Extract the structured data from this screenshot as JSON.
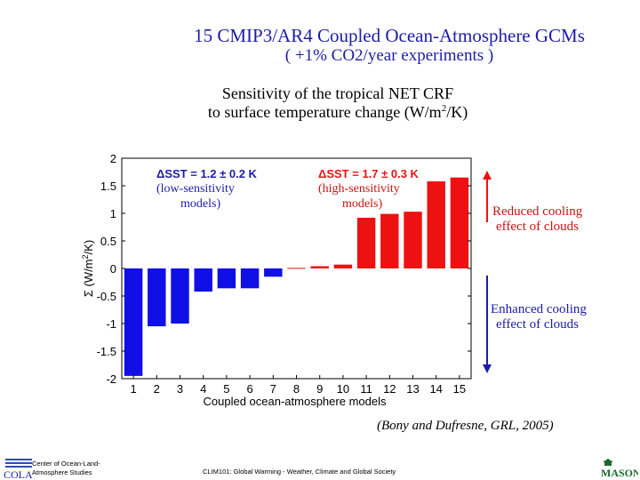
{
  "header": {
    "title_line1": "15 CMIP3/AR4 Coupled Ocean-Atmosphere GCMs",
    "title_line2": "( +1% CO2/year experiments )"
  },
  "chart_data": {
    "type": "bar",
    "title_line1": "Sensitivity of the tropical NET CRF",
    "title_line2_prefix": "to surface temperature change (W/m",
    "title_line2_sup": "2",
    "title_line2_suffix": "/K)",
    "xlabel": "Coupled ocean-atmosphere models",
    "ylabel_prefix": "Σ (W/m",
    "ylabel_sup": "2",
    "ylabel_suffix": "/K)",
    "ylim": [
      -2,
      2
    ],
    "yticks": [
      2,
      1.5,
      1,
      0.5,
      0,
      -0.5,
      -1,
      -1.5,
      -2
    ],
    "ytick_labels": [
      "2",
      "1.5",
      "1",
      "0.5",
      "0",
      "-0.5",
      "-1",
      "-1.5",
      "-2"
    ],
    "categories": [
      "1",
      "2",
      "3",
      "4",
      "5",
      "6",
      "7",
      "8",
      "9",
      "10",
      "11",
      "12",
      "13",
      "14",
      "15"
    ],
    "values": [
      -1.95,
      -1.05,
      -1.0,
      -0.42,
      -0.36,
      -0.36,
      -0.15,
      0.01,
      0.04,
      0.07,
      0.92,
      0.99,
      1.03,
      1.58,
      1.65
    ],
    "colors": [
      "#1010e6",
      "#1010e6",
      "#1010e6",
      "#1010e6",
      "#1010e6",
      "#1010e6",
      "#1010e6",
      "#ee1111",
      "#ee1111",
      "#ee1111",
      "#ee1111",
      "#ee1111",
      "#ee1111",
      "#ee1111",
      "#ee1111"
    ],
    "grid": false,
    "annotations": {
      "low_head": "ΔSST = 1.2 ± 0.2 K",
      "low_sub1": "(low-sensitivity",
      "low_sub2": "models)",
      "high_head": "ΔSST = 1.7 ± 0.3 K",
      "high_sub1": "(high-sensitivity",
      "high_sub2": "models)",
      "reduced1": "Reduced cooling",
      "reduced2": "effect of clouds",
      "enhanced1": "Enhanced cooling",
      "enhanced2": "effect of clouds"
    },
    "citation": "(Bony and Dufresne, GRL, 2005)"
  },
  "colors": {
    "low": "#1010e6",
    "high": "#ee1111",
    "title": "#1c1ca8",
    "annotation_text": "#1c1ca8",
    "reduced_text": "#cc1111",
    "enhanced_text": "#1c1ca8"
  },
  "footer": {
    "org_line1": "Center of Ocean-Land-",
    "org_line2": "Atmosphere Studies",
    "course": "CLIM101: Global Warming - Weather, Climate and Global Society",
    "left_logo_text": "COLA",
    "right_logo_text": "MASON"
  }
}
